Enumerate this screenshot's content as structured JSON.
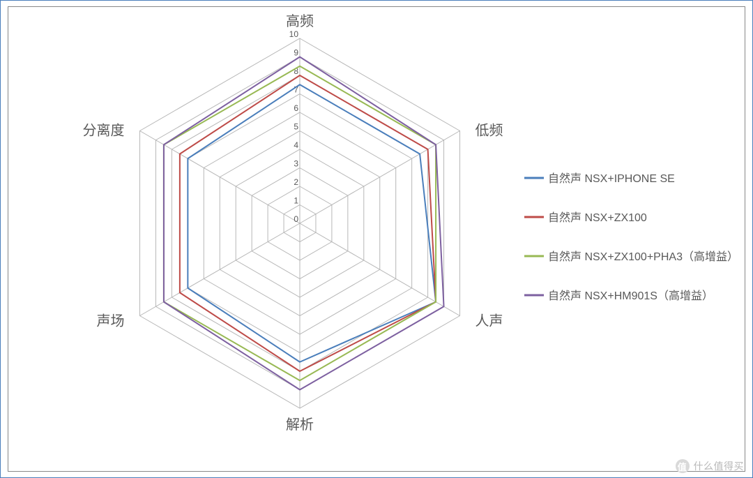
{
  "chart": {
    "type": "radar",
    "axes": [
      "高频",
      "低频",
      "人声",
      "解析",
      "声场",
      "分离度"
    ],
    "tick_labels": [
      "0",
      "1",
      "2",
      "3",
      "4",
      "5",
      "6",
      "7",
      "8",
      "9",
      "10"
    ],
    "max": 10,
    "axis_label_fontsize": 20,
    "tick_label_fontsize": 12,
    "legend_fontsize": 16,
    "background_color": "#ffffff",
    "outer_border_color": "#4a7ebb",
    "inner_border_color": "#888888",
    "grid_color": "#b7b7b7",
    "axis_label_color": "#595959",
    "tick_label_color": "#595959",
    "legend_label_color": "#595959",
    "line_width": 2,
    "series": [
      {
        "name": "自然声 NSX+IPHONE SE",
        "color": "#4a7ebb",
        "values": [
          7.5,
          7.5,
          8.5,
          7.5,
          7.0,
          7.0
        ]
      },
      {
        "name": "自然声 NSX+ZX100",
        "color": "#be4b48",
        "values": [
          8.0,
          8.0,
          8.5,
          8.0,
          7.5,
          7.5
        ]
      },
      {
        "name": "自然声 NSX+ZX100+PHA3（高增益）",
        "color": "#98b954",
        "values": [
          8.5,
          8.5,
          8.5,
          8.5,
          8.5,
          8.5
        ]
      },
      {
        "name": "自然声 NSX+HM901S（高增益）",
        "color": "#7d60a0",
        "values": [
          9.0,
          8.5,
          9.0,
          9.0,
          8.5,
          8.5
        ]
      }
    ]
  },
  "watermark": {
    "text": "什么值得买"
  }
}
